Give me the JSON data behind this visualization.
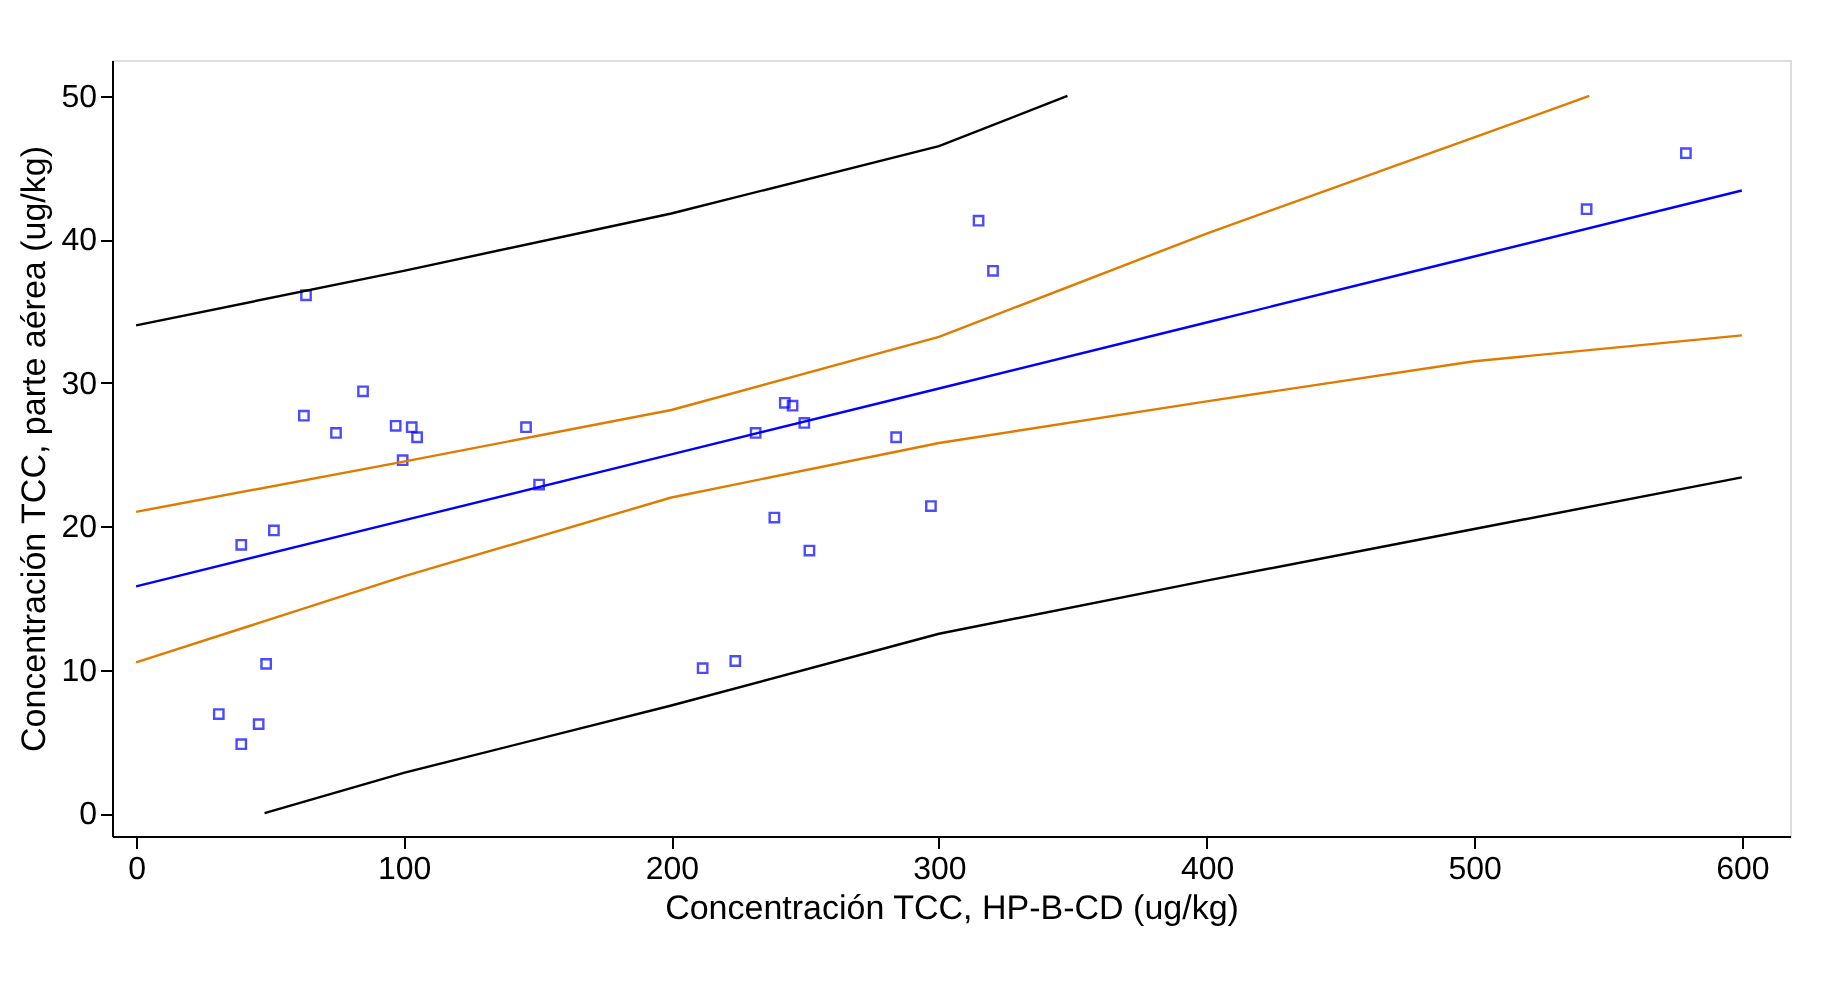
{
  "chart_data": {
    "type": "scatter",
    "xlabel": "Concentración TCC, HP-B-CD (ug/kg)",
    "ylabel": "Concentración TCC, parte aérea (ug/kg)",
    "xlim": [
      -9,
      618
    ],
    "ylim": [
      -1.6,
      52.5
    ],
    "xticks": [
      0,
      100,
      200,
      300,
      400,
      500,
      600
    ],
    "yticks": [
      0,
      10,
      20,
      30,
      40,
      50
    ],
    "grid": false,
    "series": [
      {
        "type": "scatter",
        "marker": "square",
        "color": "#0000ff",
        "x": [
          63.5,
          62.7,
          84.8,
          74.7,
          97,
          103,
          105,
          99.6,
          145.7,
          150.6,
          39.3,
          51.5,
          48.6,
          30.9,
          39.3,
          45.8,
          314.8,
          320.2,
          242.4,
          245.3,
          249.7,
          231.5,
          284,
          297,
          238.5,
          251.6,
          211.7,
          223.9,
          579.1,
          542
        ],
        "values": [
          36.1,
          27.7,
          29.4,
          26.5,
          27.0,
          26.9,
          26.2,
          24.6,
          26.9,
          22.9,
          18.7,
          19.7,
          10.4,
          6.9,
          4.8,
          6.2,
          41.3,
          37.8,
          28.6,
          28.4,
          27.2,
          26.5,
          26.2,
          21.4,
          20.6,
          18.3,
          10.1,
          10.6,
          46.0,
          42.1
        ]
      },
      {
        "type": "line",
        "color": "#0000ff",
        "line_style": "solid",
        "x": [
          0,
          100,
          200,
          300,
          400,
          500,
          600
        ],
        "values": [
          15.8,
          20.4,
          25.0,
          29.6,
          34.2,
          38.8,
          43.4
        ]
      },
      {
        "type": "line",
        "color": "#e07b00",
        "line_style": "solid",
        "x": [
          0,
          100,
          200,
          300,
          400,
          500,
          543
        ],
        "values": [
          21.0,
          24.5,
          28.1,
          33.2,
          40.4,
          47.1,
          50
        ]
      },
      {
        "type": "line",
        "color": "#e07b00",
        "line_style": "solid",
        "x": [
          0,
          100,
          200,
          300,
          400,
          500,
          600
        ],
        "values": [
          10.5,
          16.5,
          22.0,
          25.8,
          28.7,
          31.5,
          33.3
        ]
      },
      {
        "type": "line",
        "color": "#000000",
        "line_style": "solid",
        "x": [
          0,
          100,
          200,
          300,
          348
        ],
        "values": [
          34.0,
          37.8,
          41.8,
          46.5,
          50
        ]
      },
      {
        "type": "line",
        "color": "#000000",
        "line_style": "solid",
        "x": [
          48,
          100,
          200,
          300,
          400,
          500,
          600
        ],
        "values": [
          0,
          2.8,
          7.5,
          12.5,
          16.2,
          19.8,
          23.4
        ]
      }
    ]
  }
}
